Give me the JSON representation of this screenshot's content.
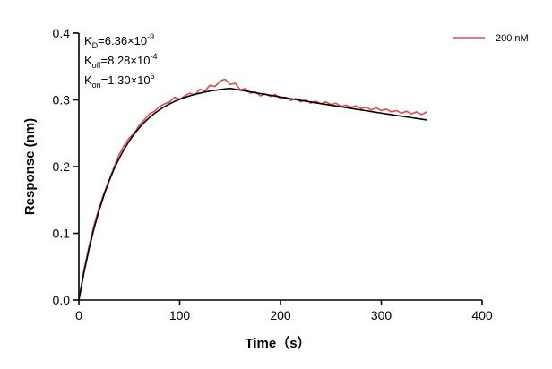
{
  "chart_data": {
    "type": "line",
    "xlabel": "Time（s）",
    "ylabel": "Response (nm)",
    "xlim": [
      0,
      400
    ],
    "xticks": [
      0,
      100,
      200,
      300,
      400
    ],
    "ylim": [
      0,
      0.4
    ],
    "yticks": [
      {
        "value": 0,
        "label": "0.0"
      },
      0.1,
      0.2,
      0.3,
      0.4
    ],
    "legend": "upper right",
    "annotations": [
      {
        "symbol": "K",
        "sub": "D",
        "text": "=6.36×10",
        "sup": "-9"
      },
      {
        "symbol": "K",
        "sub": "off",
        "text": "=8.28×10",
        "sup": "-4"
      },
      {
        "symbol": "K",
        "sub": "on",
        "text": "=1.30×10",
        "sup": "5"
      }
    ],
    "x": [
      0,
      5,
      10,
      15,
      20,
      25,
      30,
      35,
      40,
      45,
      50,
      55,
      60,
      65,
      70,
      75,
      80,
      85,
      90,
      95,
      100,
      105,
      110,
      115,
      120,
      125,
      130,
      135,
      140,
      145,
      150,
      155,
      160,
      165,
      170,
      175,
      180,
      185,
      190,
      195,
      200,
      205,
      210,
      215,
      220,
      225,
      230,
      235,
      240,
      245,
      250,
      255,
      260,
      265,
      270,
      275,
      280,
      285,
      290,
      295,
      300,
      305,
      310,
      315,
      320,
      325,
      330,
      335,
      340,
      345
    ],
    "series": [
      {
        "name": "200 nM",
        "color": "#e8474a",
        "values": [
          0.0,
          0.045,
          0.08,
          0.112,
          0.138,
          0.16,
          0.18,
          0.2,
          0.218,
          0.232,
          0.243,
          0.25,
          0.262,
          0.27,
          0.279,
          0.283,
          0.29,
          0.294,
          0.297,
          0.304,
          0.301,
          0.306,
          0.31,
          0.307,
          0.316,
          0.313,
          0.322,
          0.32,
          0.328,
          0.331,
          0.323,
          0.325,
          0.315,
          0.317,
          0.31,
          0.312,
          0.306,
          0.309,
          0.305,
          0.308,
          0.302,
          0.304,
          0.299,
          0.302,
          0.297,
          0.3,
          0.295,
          0.298,
          0.294,
          0.297,
          0.293,
          0.295,
          0.29,
          0.292,
          0.289,
          0.291,
          0.287,
          0.289,
          0.285,
          0.288,
          0.284,
          0.286,
          0.282,
          0.284,
          0.28,
          0.283,
          0.279,
          0.282,
          0.278,
          0.282
        ]
      },
      {
        "color": "#000000",
        "values": [
          0,
          0.0405,
          0.0759,
          0.1069,
          0.134,
          0.1577,
          0.1784,
          0.1966,
          0.2124,
          0.2263,
          0.2384,
          0.249,
          0.2583,
          0.2664,
          0.2735,
          0.2797,
          0.2851,
          0.2899,
          0.294,
          0.2977,
          0.3008,
          0.3036,
          0.306,
          0.3082,
          0.31,
          0.3117,
          0.3131,
          0.3143,
          0.3154,
          0.3164,
          0.3172,
          0.3159,
          0.3146,
          0.3133,
          0.312,
          0.3107,
          0.3094,
          0.3081,
          0.3069,
          0.3056,
          0.3043,
          0.3031,
          0.3018,
          0.3006,
          0.2993,
          0.2981,
          0.2969,
          0.2956,
          0.2944,
          0.2932,
          0.292,
          0.2908,
          0.2896,
          0.2884,
          0.2872,
          0.286,
          0.2848,
          0.2837,
          0.2825,
          0.2813,
          0.2802,
          0.279,
          0.2779,
          0.2767,
          0.2756,
          0.2744,
          0.2733,
          0.2722,
          0.2711,
          0.2699
        ]
      }
    ]
  }
}
